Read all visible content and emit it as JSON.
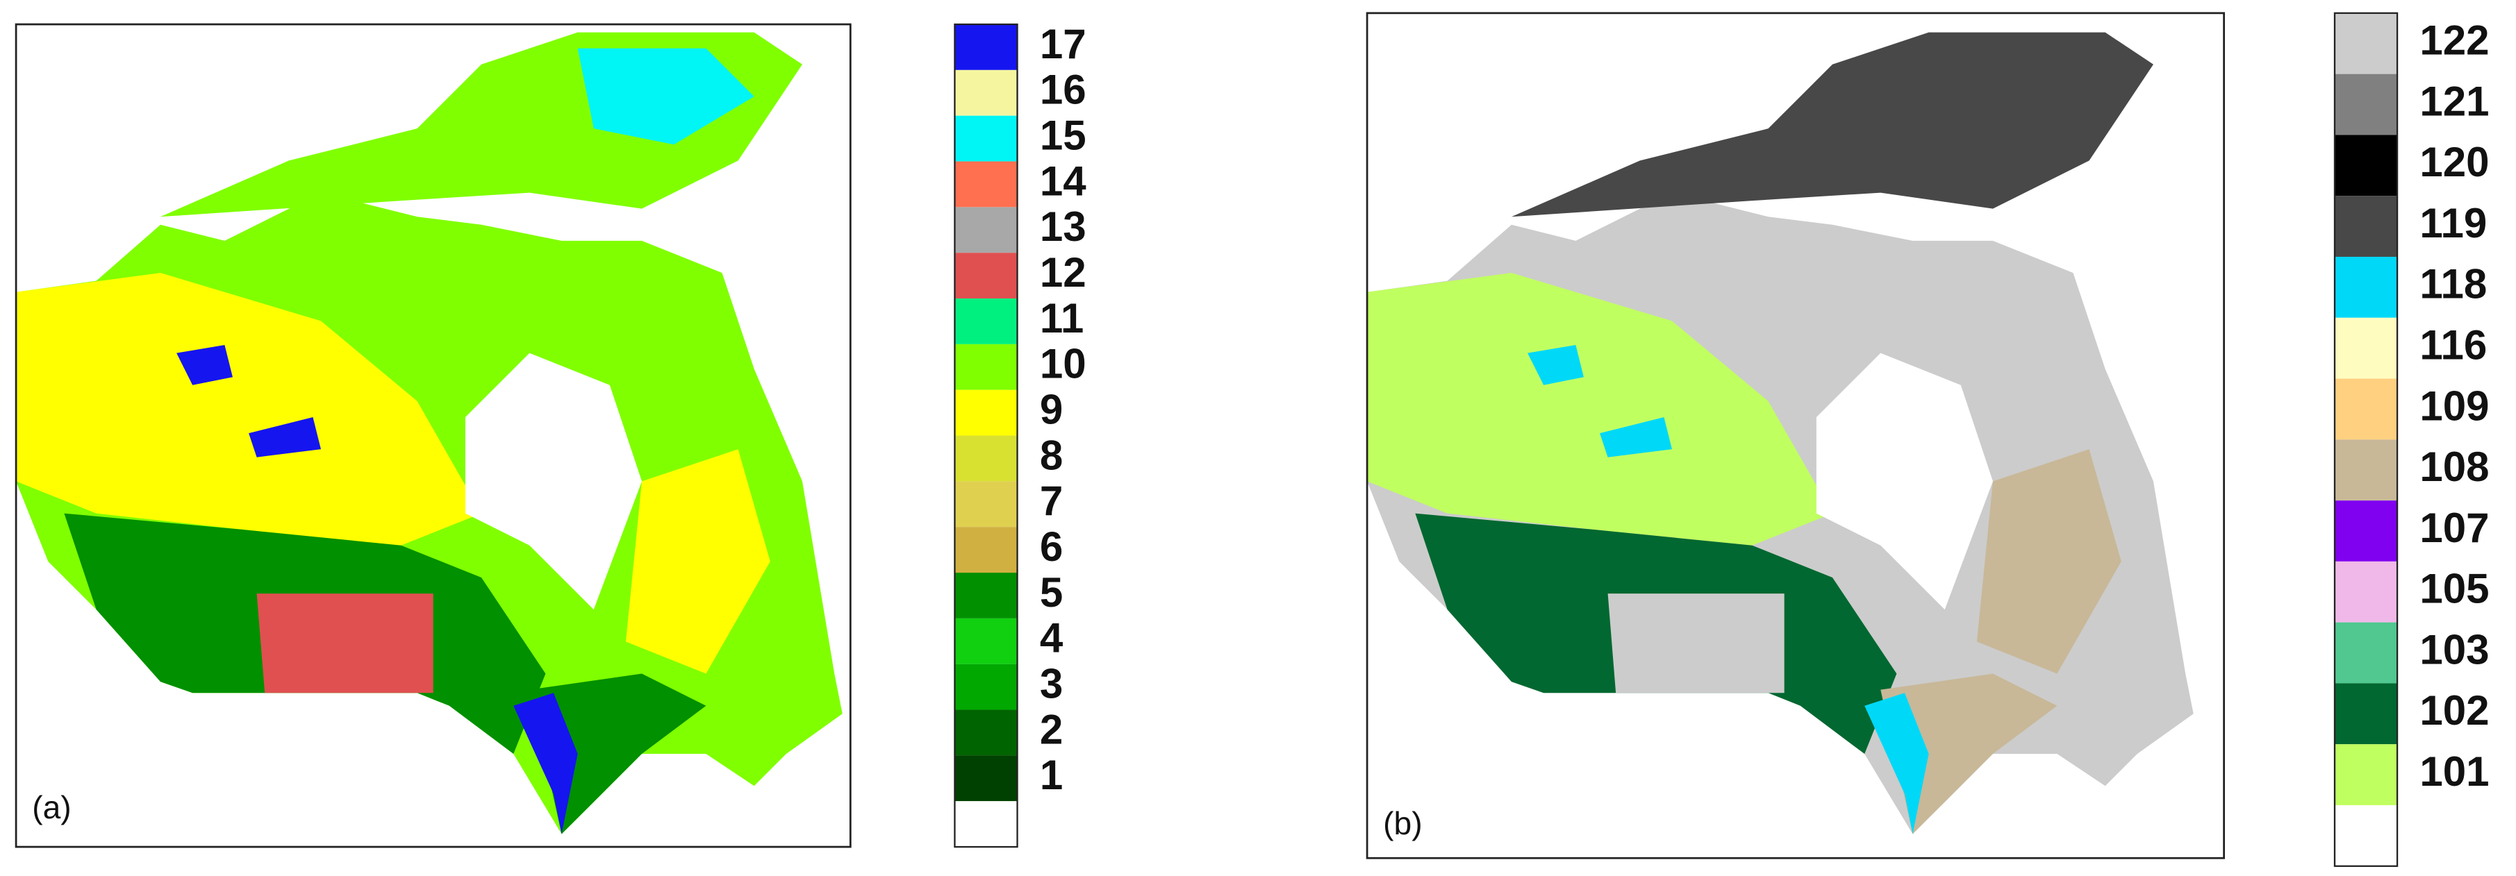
{
  "panels": [
    {
      "label": "(a)",
      "legend": [
        {
          "label": "17",
          "color": "#1515f0"
        },
        {
          "label": "16",
          "color": "#f5f5a0"
        },
        {
          "label": "15",
          "color": "#00f5f5"
        },
        {
          "label": "14",
          "color": "#ff7050"
        },
        {
          "label": "13",
          "color": "#a8a8a8"
        },
        {
          "label": "12",
          "color": "#e05050"
        },
        {
          "label": "11",
          "color": "#00f080"
        },
        {
          "label": "10",
          "color": "#80ff00"
        },
        {
          "label": "9",
          "color": "#ffff00"
        },
        {
          "label": "8",
          "color": "#d8e030"
        },
        {
          "label": "7",
          "color": "#e0d050"
        },
        {
          "label": "6",
          "color": "#d0b040"
        },
        {
          "label": "5",
          "color": "#009000"
        },
        {
          "label": "4",
          "color": "#10d010"
        },
        {
          "label": "3",
          "color": "#00a800"
        },
        {
          "label": "2",
          "color": "#006400"
        },
        {
          "label": "1",
          "color": "#004000"
        }
      ]
    },
    {
      "label": "(b)",
      "legend": [
        {
          "label": "122",
          "color": "#cccccc"
        },
        {
          "label": "121",
          "color": "#808080"
        },
        {
          "label": "120",
          "color": "#000000"
        },
        {
          "label": "119",
          "color": "#484848"
        },
        {
          "label": "118",
          "color": "#00d8f8"
        },
        {
          "label": "116",
          "color": "#fffcc0"
        },
        {
          "label": "109",
          "color": "#ffd080"
        },
        {
          "label": "108",
          "color": "#c8b898"
        },
        {
          "label": "107",
          "color": "#8000f0"
        },
        {
          "label": "105",
          "color": "#f0b8e8"
        },
        {
          "label": "103",
          "color": "#50c890"
        },
        {
          "label": "102",
          "color": "#006830"
        },
        {
          "label": "101",
          "color": "#c0ff60"
        }
      ]
    }
  ]
}
